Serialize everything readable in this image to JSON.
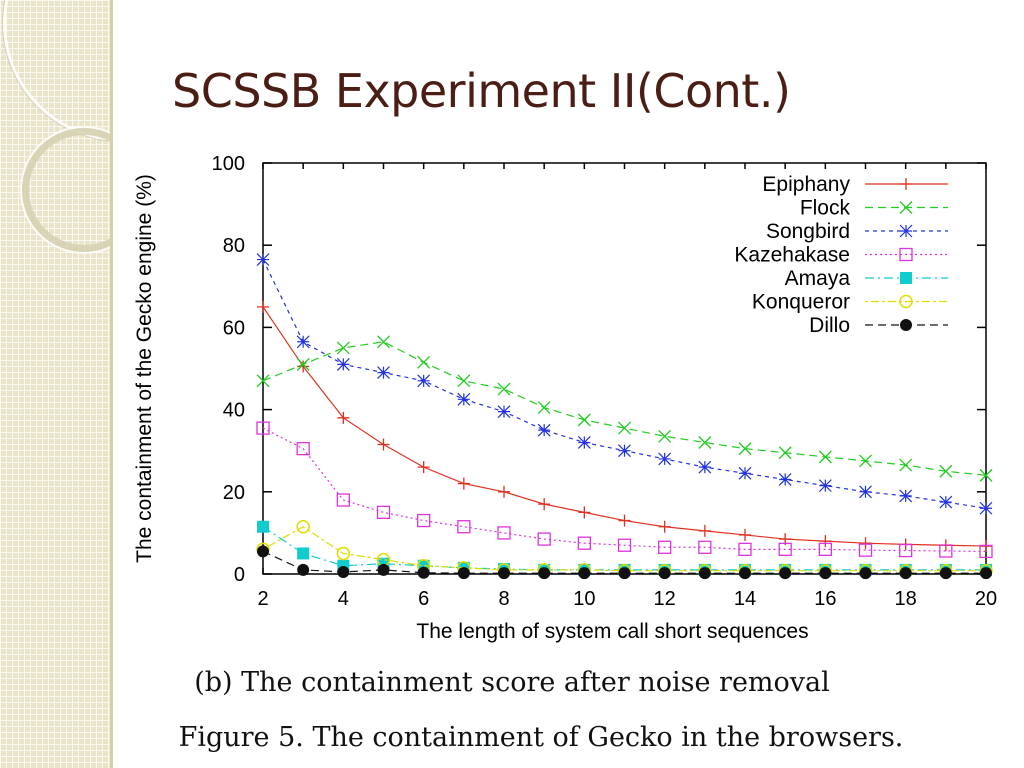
{
  "slide": {
    "title": "SCSSB Experiment II(Cont.)",
    "subcaption": "(b) The containment score after noise removal",
    "figure_caption": "Figure 5.   The containment of Gecko in the browsers."
  },
  "colors": {
    "title": "#4a1e14",
    "side_panel": "#e9e4c9"
  },
  "chart_data": {
    "type": "line",
    "xlabel": "The length of system call short sequences",
    "ylabel": "The containment of the Gecko engine (%)",
    "xlim": [
      2,
      20
    ],
    "ylim": [
      0,
      100
    ],
    "xticks": [
      2,
      4,
      6,
      8,
      10,
      12,
      14,
      16,
      18,
      20
    ],
    "yticks": [
      0,
      20,
      40,
      60,
      80,
      100
    ],
    "legend": "top-right",
    "grid": false,
    "x": [
      2,
      3,
      4,
      5,
      6,
      7,
      8,
      9,
      10,
      11,
      12,
      13,
      14,
      15,
      16,
      17,
      18,
      19,
      20
    ],
    "series": [
      {
        "name": "Epiphany",
        "color": "#e03020",
        "marker": "plus",
        "dash": "solid",
        "values": [
          65,
          50.5,
          38,
          31.5,
          26,
          22,
          20,
          17,
          15,
          13,
          11.5,
          10.5,
          9.5,
          8.5,
          8,
          7.5,
          7.2,
          7,
          6.8
        ]
      },
      {
        "name": "Flock",
        "color": "#22cc22",
        "marker": "x",
        "dash": "dash",
        "values": [
          47,
          51,
          55,
          56.5,
          51.5,
          47,
          45,
          40.5,
          37.5,
          35.5,
          33.5,
          32,
          30.5,
          29.5,
          28.5,
          27.5,
          26.5,
          25,
          24
        ]
      },
      {
        "name": "Songbird",
        "color": "#2233dd",
        "marker": "star",
        "dash": "shortdash",
        "values": [
          76.5,
          56.5,
          51,
          49,
          47,
          42.5,
          39.5,
          35,
          32,
          30,
          28,
          26,
          24.5,
          23,
          21.5,
          20,
          19,
          17.5,
          16
        ]
      },
      {
        "name": "Kazehakase",
        "color": "#dd33dd",
        "marker": "square-dot",
        "dash": "dot",
        "values": [
          35.5,
          30.5,
          18,
          15,
          13,
          11.5,
          10,
          8.5,
          7.5,
          7,
          6.5,
          6.5,
          6,
          6,
          6,
          5.8,
          5.7,
          5.6,
          5.5
        ]
      },
      {
        "name": "Amaya",
        "color": "#11cccc",
        "marker": "filled-square",
        "dash": "dashdot",
        "values": [
          11.5,
          5,
          2,
          2.5,
          2,
          1.5,
          1.2,
          1,
          1,
          1,
          1,
          1,
          1,
          1,
          1,
          1,
          1,
          1,
          1
        ]
      },
      {
        "name": "Konqueror",
        "color": "#dddd00",
        "marker": "circle",
        "dash": "dotdash",
        "values": [
          6,
          11.5,
          5,
          3.5,
          2,
          1.5,
          1,
          1,
          1,
          0.8,
          0.8,
          0.8,
          0.8,
          0.8,
          0.8,
          0.8,
          0.8,
          0.8,
          0.8
        ]
      },
      {
        "name": "Dillo",
        "color": "#111111",
        "marker": "filled-circle",
        "dash": "dash",
        "values": [
          5.5,
          1,
          0.5,
          1,
          0.3,
          0.2,
          0.2,
          0.2,
          0.2,
          0.2,
          0.2,
          0.2,
          0.2,
          0.2,
          0.2,
          0.2,
          0.2,
          0.2,
          0.2
        ]
      }
    ]
  }
}
